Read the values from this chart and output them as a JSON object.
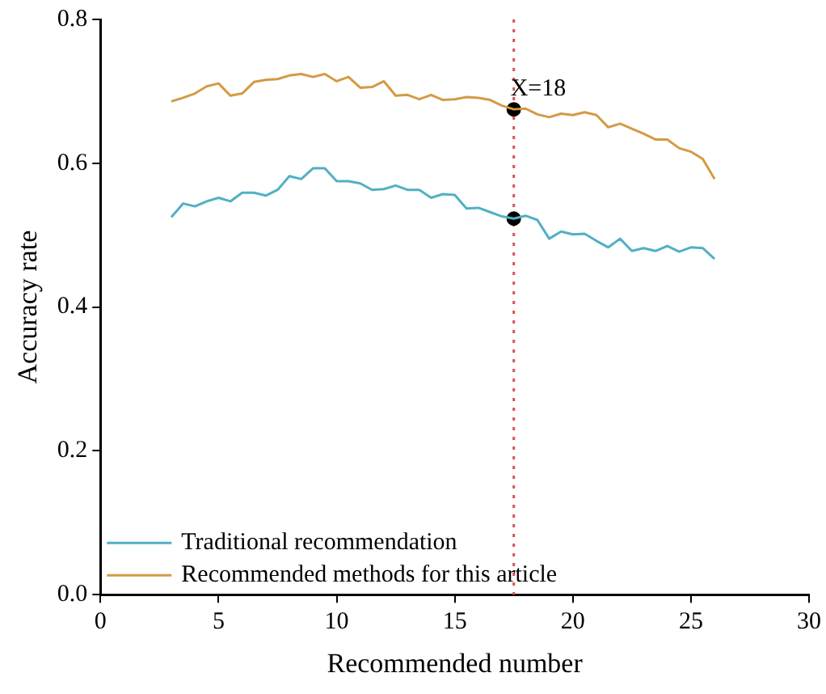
{
  "chart_data": {
    "type": "line",
    "xlabel": "Recommended number",
    "ylabel": "Accuracy rate",
    "x": [
      3,
      3.5,
      4,
      4.5,
      5,
      5.5,
      6,
      6.5,
      7,
      7.5,
      8,
      8.5,
      9,
      9.5,
      10,
      10.5,
      11,
      11.5,
      12,
      12.5,
      13,
      13.5,
      14,
      14.5,
      15,
      15.5,
      16,
      16.5,
      17,
      17.5,
      18,
      18.5,
      19,
      19.5,
      20,
      20.5,
      21,
      21.5,
      22,
      22.5,
      23,
      23.5,
      24,
      24.5,
      25,
      25.5,
      26
    ],
    "series": [
      {
        "name": "Traditional recommendation",
        "color": "#52b0c4",
        "values": [
          0.525,
          0.544,
          0.54,
          0.547,
          0.552,
          0.547,
          0.559,
          0.559,
          0.555,
          0.563,
          0.582,
          0.578,
          0.593,
          0.593,
          0.575,
          0.575,
          0.572,
          0.563,
          0.564,
          0.569,
          0.563,
          0.563,
          0.552,
          0.557,
          0.556,
          0.537,
          0.538,
          0.532,
          0.526,
          0.523,
          0.527,
          0.521,
          0.495,
          0.505,
          0.501,
          0.502,
          0.492,
          0.483,
          0.495,
          0.478,
          0.482,
          0.478,
          0.485,
          0.477,
          0.483,
          0.482,
          0.467
        ]
      },
      {
        "name": "Recommended methods for this article",
        "color": "#d49a45",
        "values": [
          0.686,
          0.691,
          0.697,
          0.707,
          0.711,
          0.694,
          0.697,
          0.713,
          0.716,
          0.717,
          0.722,
          0.724,
          0.72,
          0.724,
          0.714,
          0.72,
          0.705,
          0.706,
          0.714,
          0.694,
          0.695,
          0.689,
          0.695,
          0.688,
          0.689,
          0.692,
          0.691,
          0.688,
          0.68,
          0.675,
          0.676,
          0.668,
          0.664,
          0.669,
          0.667,
          0.671,
          0.667,
          0.65,
          0.655,
          0.648,
          0.641,
          0.633,
          0.633,
          0.621,
          0.616,
          0.606,
          0.578
        ]
      },
      {
        "type": "scatter",
        "marker": "circle",
        "color": "#000000",
        "x": [
          17.5,
          17.5
        ],
        "values": [
          0.675,
          0.523
        ]
      }
    ],
    "xlim": [
      0,
      30
    ],
    "xticks": [
      0,
      5,
      10,
      15,
      20,
      25,
      30
    ],
    "ylim": [
      0,
      0.8
    ],
    "yticks": [
      {
        "value": 0,
        "label": "0.0"
      },
      0.2,
      0.4,
      0.6,
      0.8
    ],
    "ref_lines": [
      {
        "axis": "x",
        "value": 17.5,
        "color": "#d9534f",
        "line_style": "dotted"
      }
    ],
    "annotations": [
      {
        "text": "X=18",
        "x": 17.5,
        "y": 0.675
      }
    ],
    "legend": "bottom left",
    "grid": false,
    "marker": "none",
    "line_style": "solid"
  }
}
